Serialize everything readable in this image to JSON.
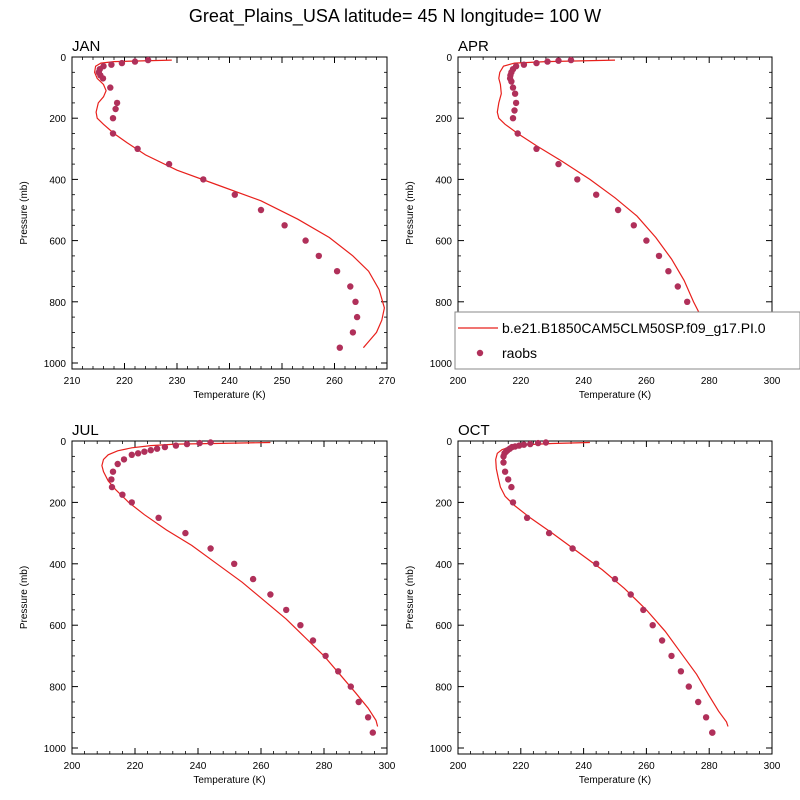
{
  "title": "Great_Plains_USA  latitude= 45 N longitude= 100 W",
  "colors": {
    "model_line": "#e8201c",
    "obs_marker": "#b0305a",
    "axis": "#000000"
  },
  "legend": {
    "model_label": "b.e21.B1850CAM5CLM50SP.f09_g17.PI.0",
    "obs_label": "raobs"
  },
  "chart_data": [
    {
      "type": "line",
      "panel_label": "JAN",
      "xlabel": "Temperature (K)",
      "ylabel": "Pressure (mb)",
      "xlim": [
        210,
        270
      ],
      "ylim": [
        1000,
        0
      ],
      "xticks": [
        "210",
        "220",
        "230",
        "240",
        "250",
        "260",
        "270"
      ],
      "yticks": [
        "0",
        "200",
        "400",
        "600",
        "800",
        "1000"
      ],
      "series": [
        {
          "name": "b.e21.B1850CAM5CLM50SP.f09_g17.PI.0",
          "kind": "line",
          "x": [
            229,
            218,
            215.5,
            214.5,
            214.3,
            214.8,
            216,
            216.5,
            216,
            215,
            214.6,
            214.8,
            216,
            218,
            220.5,
            224,
            230,
            238,
            246,
            253,
            259,
            263.5,
            266.5,
            268.5,
            269.5,
            269,
            268,
            266.5,
            265.5
          ],
          "y": [
            10,
            15,
            20,
            30,
            50,
            70,
            90,
            110,
            130,
            150,
            180,
            200,
            220,
            250,
            280,
            320,
            370,
            420,
            470,
            530,
            590,
            650,
            700,
            760,
            820,
            860,
            900,
            930,
            950
          ]
        },
        {
          "name": "raobs",
          "kind": "scatter",
          "x": [
            224.5,
            222,
            219.5,
            217.5,
            216,
            215.3,
            215.1,
            215.4,
            215.9,
            217.3,
            218.6,
            218.3,
            217.8,
            217.8,
            222.5,
            228.5,
            235,
            241,
            246,
            250.5,
            254.5,
            257,
            260.5,
            263,
            264,
            264.3,
            263.5,
            261
          ],
          "y": [
            10,
            15,
            20,
            25,
            30,
            40,
            50,
            60,
            70,
            100,
            150,
            170,
            200,
            250,
            300,
            350,
            400,
            450,
            500,
            550,
            600,
            650,
            700,
            750,
            800,
            850,
            900,
            950
          ]
        }
      ]
    },
    {
      "type": "line",
      "panel_label": "APR",
      "xlabel": "Temperature (K)",
      "ylabel": "Pressure (mb)",
      "xlim": [
        200,
        300
      ],
      "ylim": [
        1000,
        0
      ],
      "xticks": [
        "200",
        "220",
        "240",
        "260",
        "280",
        "300"
      ],
      "yticks": [
        "0",
        "200",
        "400",
        "600",
        "800",
        "1000"
      ],
      "series": [
        {
          "name": "b.e21.B1850CAM5CLM50SP.f09_g17.PI.0",
          "kind": "line",
          "x": [
            250,
            228,
            218,
            214.5,
            213.3,
            213,
            213.5,
            213.8,
            213,
            212.5,
            213,
            215,
            219,
            225,
            233,
            242,
            250,
            257,
            263,
            268,
            272,
            275,
            278,
            280,
            281.5,
            281
          ],
          "y": [
            10,
            15,
            20,
            30,
            50,
            70,
            90,
            120,
            150,
            180,
            200,
            220,
            250,
            290,
            340,
            400,
            460,
            520,
            590,
            660,
            730,
            800,
            860,
            900,
            930,
            950
          ]
        },
        {
          "name": "raobs",
          "kind": "scatter",
          "x": [
            236,
            232,
            228.5,
            225,
            221,
            218.5,
            217.5,
            217,
            216.7,
            216.6,
            217,
            217.5,
            218.2,
            218.5,
            218,
            217.5,
            219,
            225,
            232,
            238,
            244,
            251,
            256,
            260,
            264,
            267,
            270,
            273,
            275,
            278,
            279
          ],
          "y": [
            10,
            12,
            15,
            20,
            25,
            30,
            40,
            50,
            60,
            70,
            80,
            100,
            120,
            150,
            175,
            200,
            250,
            300,
            350,
            400,
            450,
            500,
            550,
            600,
            650,
            700,
            750,
            800,
            850,
            900,
            950
          ]
        }
      ]
    },
    {
      "type": "line",
      "panel_label": "JUL",
      "xlabel": "Temperature (K)",
      "ylabel": "Pressure (mb)",
      "xlim": [
        200,
        300
      ],
      "ylim": [
        1000,
        0
      ],
      "xticks": [
        "200",
        "220",
        "240",
        "260",
        "280",
        "300"
      ],
      "yticks": [
        "0",
        "200",
        "400",
        "600",
        "800",
        "1000"
      ],
      "series": [
        {
          "name": "b.e21.B1850CAM5CLM50SP.f09_g17.PI.0",
          "kind": "line",
          "x": [
            263,
            245,
            233,
            225,
            219,
            214.5,
            211.5,
            210,
            209.5,
            210,
            211.5,
            214,
            218,
            223,
            230,
            238,
            246,
            254,
            261,
            268,
            274,
            280,
            285,
            290,
            294,
            296.5,
            297
          ],
          "y": [
            5,
            8,
            10,
            15,
            22,
            32,
            45,
            60,
            80,
            100,
            130,
            160,
            200,
            240,
            290,
            340,
            400,
            460,
            520,
            580,
            640,
            700,
            760,
            820,
            870,
            910,
            930
          ]
        },
        {
          "name": "raobs",
          "kind": "scatter",
          "x": [
            244,
            240.5,
            236.5,
            233,
            229.5,
            227,
            225,
            223,
            221,
            219,
            216.5,
            214.5,
            213,
            212.5,
            212.7,
            216,
            219,
            227.5,
            236,
            244,
            251.5,
            257.5,
            263,
            268,
            272.5,
            276.5,
            280.5,
            284.5,
            288.5,
            291,
            294,
            295.5
          ],
          "y": [
            5,
            7,
            10,
            15,
            20,
            25,
            30,
            35,
            40,
            45,
            60,
            75,
            100,
            125,
            150,
            175,
            200,
            250,
            300,
            350,
            400,
            450,
            500,
            550,
            600,
            650,
            700,
            750,
            800,
            850,
            900,
            950
          ]
        }
      ]
    },
    {
      "type": "line",
      "panel_label": "OCT",
      "xlabel": "Temperature (K)",
      "ylabel": "Pressure (mb)",
      "xlim": [
        200,
        300
      ],
      "ylim": [
        1000,
        0
      ],
      "xticks": [
        "200",
        "220",
        "240",
        "260",
        "280",
        "300"
      ],
      "yticks": [
        "0",
        "200",
        "400",
        "600",
        "800",
        "1000"
      ],
      "series": [
        {
          "name": "b.e21.B1850CAM5CLM50SP.f09_g17.PI.0",
          "kind": "line",
          "x": [
            242,
            230,
            222,
            217,
            214,
            212.5,
            212,
            212.2,
            212.8,
            213.5,
            215,
            218,
            223,
            230,
            238,
            246,
            253,
            260,
            266,
            271,
            276,
            280,
            283,
            285.5,
            286
          ],
          "y": [
            5,
            8,
            12,
            18,
            28,
            40,
            60,
            90,
            120,
            150,
            180,
            210,
            250,
            300,
            360,
            420,
            480,
            550,
            620,
            690,
            760,
            830,
            880,
            915,
            930
          ]
        },
        {
          "name": "raobs",
          "kind": "scatter",
          "x": [
            228,
            225.5,
            223,
            221,
            219.5,
            218.2,
            217.2,
            216.5,
            215.8,
            215.3,
            214.8,
            214.5,
            214.5,
            215,
            216,
            217,
            217.5,
            222,
            229,
            236.5,
            244,
            250,
            255,
            259,
            262,
            265,
            268,
            271,
            273.5,
            276.5,
            279,
            281,
            281
          ],
          "y": [
            5,
            7,
            10,
            12,
            15,
            18,
            20,
            25,
            30,
            35,
            40,
            50,
            70,
            100,
            125,
            150,
            200,
            250,
            300,
            350,
            400,
            450,
            500,
            550,
            600,
            650,
            700,
            750,
            800,
            850,
            900,
            950,
            950
          ]
        }
      ]
    }
  ]
}
